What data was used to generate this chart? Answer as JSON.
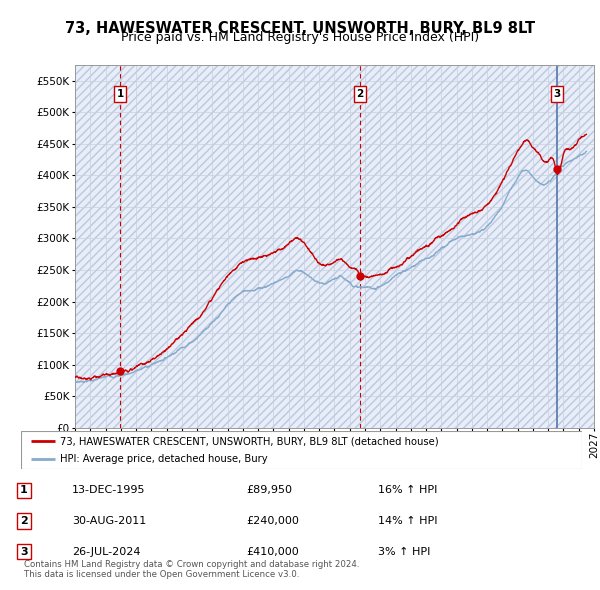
{
  "title": "73, HAWESWATER CRESCENT, UNSWORTH, BURY, BL9 8LT",
  "subtitle": "Price paid vs. HM Land Registry's House Price Index (HPI)",
  "ylim": [
    0,
    575000
  ],
  "yticks": [
    0,
    50000,
    100000,
    150000,
    200000,
    250000,
    300000,
    350000,
    400000,
    450000,
    500000,
    550000
  ],
  "ytick_labels": [
    "£0",
    "£50K",
    "£100K",
    "£150K",
    "£200K",
    "£250K",
    "£300K",
    "£350K",
    "£400K",
    "£450K",
    "£500K",
    "£550K"
  ],
  "xlim_start": 1993.0,
  "xlim_end": 2027.0,
  "hatch_facecolor": "#e8edf8",
  "hatch_edgecolor": "#b8c8e0",
  "grid_color": "#c8d0e0",
  "sale_color": "#cc0000",
  "hpi_color": "#88aacc",
  "vline_sale_color": "#cc0000",
  "vline_last_color": "#5577aa",
  "sale_points": [
    {
      "year": 1995.96,
      "price": 89950,
      "label": "1"
    },
    {
      "year": 2011.66,
      "price": 240000,
      "label": "2"
    },
    {
      "year": 2024.56,
      "price": 410000,
      "label": "3"
    }
  ],
  "legend_sale_label": "73, HAWESWATER CRESCENT, UNSWORTH, BURY, BL9 8LT (detached house)",
  "legend_hpi_label": "HPI: Average price, detached house, Bury",
  "table_rows": [
    {
      "num": "1",
      "date": "13-DEC-1995",
      "price": "£89,950",
      "change": "16% ↑ HPI"
    },
    {
      "num": "2",
      "date": "30-AUG-2011",
      "price": "£240,000",
      "change": "14% ↑ HPI"
    },
    {
      "num": "3",
      "date": "26-JUL-2024",
      "price": "£410,000",
      "change": "3% ↑ HPI"
    }
  ],
  "footer": "Contains HM Land Registry data © Crown copyright and database right 2024.\nThis data is licensed under the Open Government Licence v3.0.",
  "title_fontsize": 10.5,
  "subtitle_fontsize": 9,
  "tick_fontsize": 7.5
}
